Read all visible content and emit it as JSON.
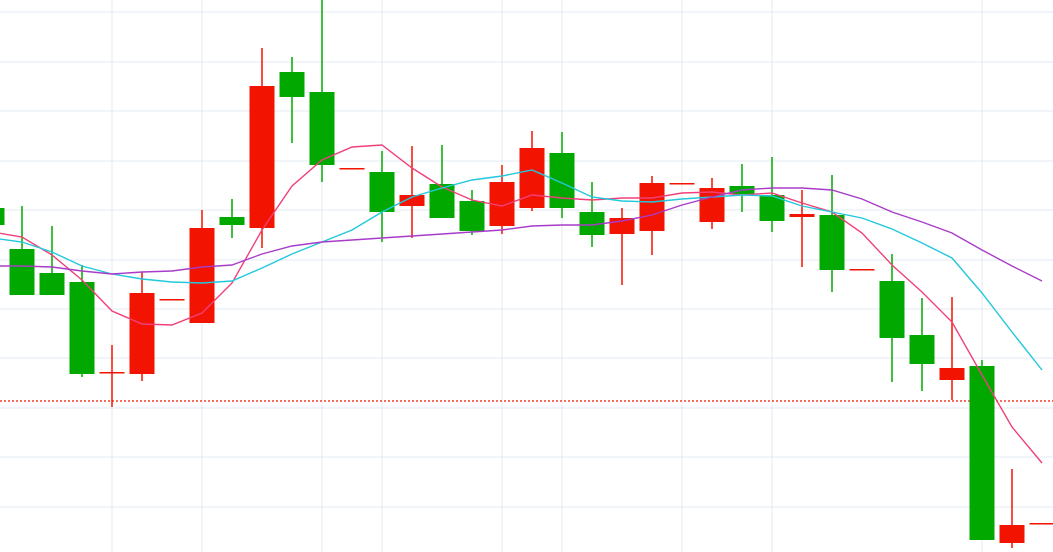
{
  "chart_data": {
    "type": "candlestick",
    "title": "",
    "xlabel": "",
    "ylabel": "",
    "ylim": [
      4.48,
      10.0
    ],
    "grid": true,
    "up_color": "#f21300",
    "down_color": "#00a800",
    "reference_line": {
      "value": 5.99,
      "color": "#f21300",
      "style": "dotted"
    },
    "candles": [
      {
        "open": 7.92,
        "high": 7.92,
        "low": 7.75,
        "close": 7.75
      },
      {
        "open": 7.51,
        "high": 7.94,
        "low": 7.05,
        "close": 7.05
      },
      {
        "open": 7.27,
        "high": 7.74,
        "low": 7.05,
        "close": 7.05
      },
      {
        "open": 7.18,
        "high": 7.35,
        "low": 6.23,
        "close": 6.26
      },
      {
        "open": 6.28,
        "high": 6.55,
        "low": 5.93,
        "close": 6.28
      },
      {
        "open": 6.26,
        "high": 7.28,
        "low": 6.19,
        "close": 7.07
      },
      {
        "open": 7.01,
        "high": 7.01,
        "low": 7.01,
        "close": 7.01
      },
      {
        "open": 6.77,
        "high": 7.9,
        "low": 6.77,
        "close": 7.72
      },
      {
        "open": 7.83,
        "high": 8.01,
        "low": 7.62,
        "close": 7.75
      },
      {
        "open": 7.72,
        "high": 9.52,
        "low": 7.52,
        "close": 9.14
      },
      {
        "open": 9.28,
        "high": 9.43,
        "low": 8.57,
        "close": 9.03
      },
      {
        "open": 9.08,
        "high": 10.0,
        "low": 8.18,
        "close": 8.35
      },
      {
        "open": 8.32,
        "high": 8.32,
        "low": 8.32,
        "close": 8.32
      },
      {
        "open": 8.28,
        "high": 8.49,
        "low": 7.58,
        "close": 7.88
      },
      {
        "open": 7.94,
        "high": 8.54,
        "low": 7.62,
        "close": 8.05
      },
      {
        "open": 8.16,
        "high": 8.55,
        "low": 7.82,
        "close": 7.82
      },
      {
        "open": 7.99,
        "high": 8.1,
        "low": 7.65,
        "close": 7.69
      },
      {
        "open": 7.74,
        "high": 8.35,
        "low": 7.66,
        "close": 8.18
      },
      {
        "open": 7.92,
        "high": 8.69,
        "low": 7.89,
        "close": 8.52
      },
      {
        "open": 8.47,
        "high": 8.68,
        "low": 7.82,
        "close": 7.92
      },
      {
        "open": 7.88,
        "high": 8.18,
        "low": 7.53,
        "close": 7.65
      },
      {
        "open": 7.66,
        "high": 7.92,
        "low": 7.15,
        "close": 7.82
      },
      {
        "open": 7.69,
        "high": 8.24,
        "low": 7.45,
        "close": 8.17
      },
      {
        "open": 8.17,
        "high": 8.17,
        "low": 8.17,
        "close": 8.17
      },
      {
        "open": 7.78,
        "high": 8.22,
        "low": 7.71,
        "close": 8.12
      },
      {
        "open": 8.14,
        "high": 8.36,
        "low": 7.88,
        "close": 8.06
      },
      {
        "open": 8.05,
        "high": 8.43,
        "low": 7.68,
        "close": 7.79
      },
      {
        "open": 7.83,
        "high": 8.1,
        "low": 7.33,
        "close": 7.86
      },
      {
        "open": 7.85,
        "high": 8.25,
        "low": 7.08,
        "close": 7.3
      },
      {
        "open": 7.31,
        "high": 7.31,
        "low": 7.31,
        "close": 7.31
      },
      {
        "open": 7.19,
        "high": 7.46,
        "low": 6.18,
        "close": 6.62
      },
      {
        "open": 6.65,
        "high": 7.02,
        "low": 6.09,
        "close": 6.36
      },
      {
        "open": 6.2,
        "high": 7.03,
        "low": 6.0,
        "close": 6.32
      },
      {
        "open": 6.34,
        "high": 6.4,
        "low": 4.6,
        "close": 4.6
      },
      {
        "open": 4.57,
        "high": 5.31,
        "low": 4.52,
        "close": 4.75
      },
      {
        "open": 4.77,
        "high": 4.77,
        "low": 4.77,
        "close": 4.77
      }
    ],
    "moving_averages": [
      {
        "color": "#f0407a",
        "values": [
          7.68,
          7.63,
          7.45,
          7.2,
          6.89,
          6.76,
          6.75,
          6.87,
          7.17,
          7.7,
          8.14,
          8.4,
          8.53,
          8.55,
          8.32,
          8.13,
          8.0,
          7.94,
          8.05,
          8.02,
          8.0,
          8.02,
          8.02,
          8.07,
          8.08,
          8.05,
          8.07,
          7.97,
          7.88,
          7.67,
          7.35,
          7.08,
          6.78,
          6.25,
          5.73,
          5.37
        ]
      },
      {
        "color": "#22c8dc",
        "values": [
          7.62,
          7.58,
          7.48,
          7.34,
          7.26,
          7.21,
          7.18,
          7.17,
          7.19,
          7.32,
          7.46,
          7.58,
          7.7,
          7.88,
          8.03,
          8.12,
          8.2,
          8.24,
          8.3,
          8.17,
          8.03,
          7.99,
          7.98,
          8.01,
          8.03,
          8.05,
          8.04,
          7.94,
          7.88,
          7.82,
          7.71,
          7.57,
          7.42,
          7.07,
          6.68,
          6.3
        ]
      },
      {
        "color": "#a83cc8",
        "values": [
          7.34,
          7.34,
          7.33,
          7.29,
          7.26,
          7.28,
          7.29,
          7.33,
          7.35,
          7.46,
          7.54,
          7.58,
          7.6,
          7.62,
          7.64,
          7.66,
          7.68,
          7.7,
          7.74,
          7.75,
          7.75,
          7.79,
          7.85,
          7.95,
          8.03,
          8.1,
          8.12,
          8.12,
          8.1,
          8.01,
          7.88,
          7.78,
          7.67,
          7.5,
          7.34,
          7.19
        ]
      }
    ]
  }
}
